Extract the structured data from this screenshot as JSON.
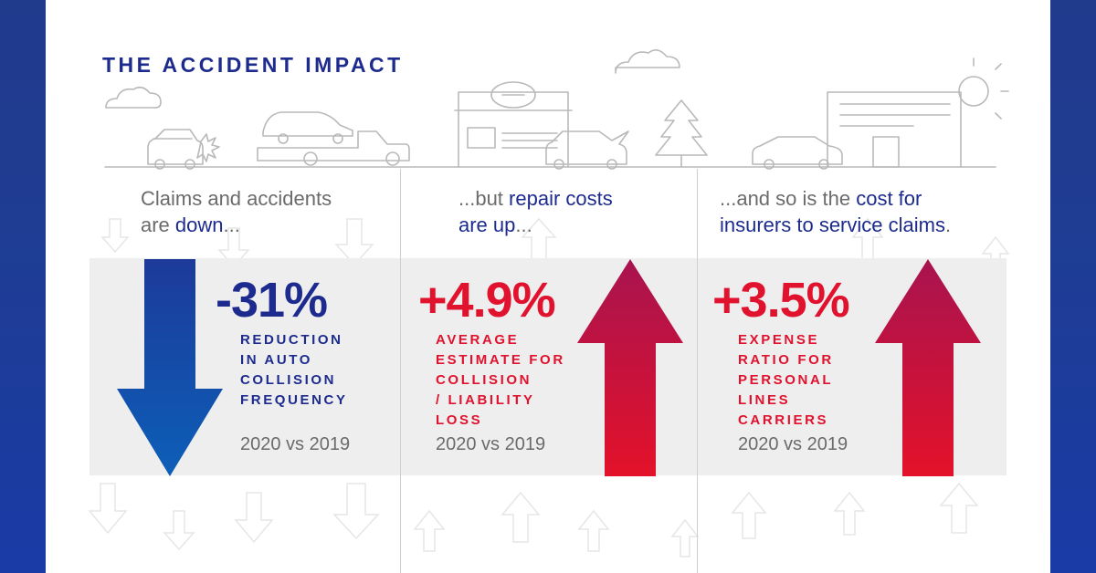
{
  "title": "THE ACCIDENT IMPACT",
  "colors": {
    "navy": "#1d2b8f",
    "red": "#e0122d",
    "crimson": "#b0124f",
    "frame_blue": "#1f3d93"
  },
  "panels": [
    {
      "intro_pre": "Claims and accidents",
      "intro_line2_pre": "are ",
      "intro_em": "down",
      "intro_post": "...",
      "stat": "-31%",
      "desc": [
        "REDUCTION",
        "IN AUTO",
        "COLLISION",
        "FREQUENCY"
      ],
      "comparison": "2020 vs 2019",
      "arrow": "down-arrow-icon"
    },
    {
      "intro_pre": "...but ",
      "intro_em": "repair costs",
      "intro_line2": "are up",
      "intro_post": "...",
      "stat": "+4.9%",
      "desc": [
        "AVERAGE",
        "ESTIMATE FOR",
        "COLLISION",
        "/ LIABILITY",
        "LOSS"
      ],
      "comparison": "2020 vs 2019",
      "arrow": "up-arrow-icon"
    },
    {
      "intro_pre": "...and so is the ",
      "intro_em": "cost for",
      "intro_line2": "insurers to service claims",
      "intro_post": ".",
      "stat": "+3.5%",
      "desc": [
        "EXPENSE",
        "RATIO FOR",
        "PERSONAL",
        "LINES",
        "CARRIERS"
      ],
      "comparison": "2020 vs 2019",
      "arrow": "up-arrow-icon"
    }
  ]
}
